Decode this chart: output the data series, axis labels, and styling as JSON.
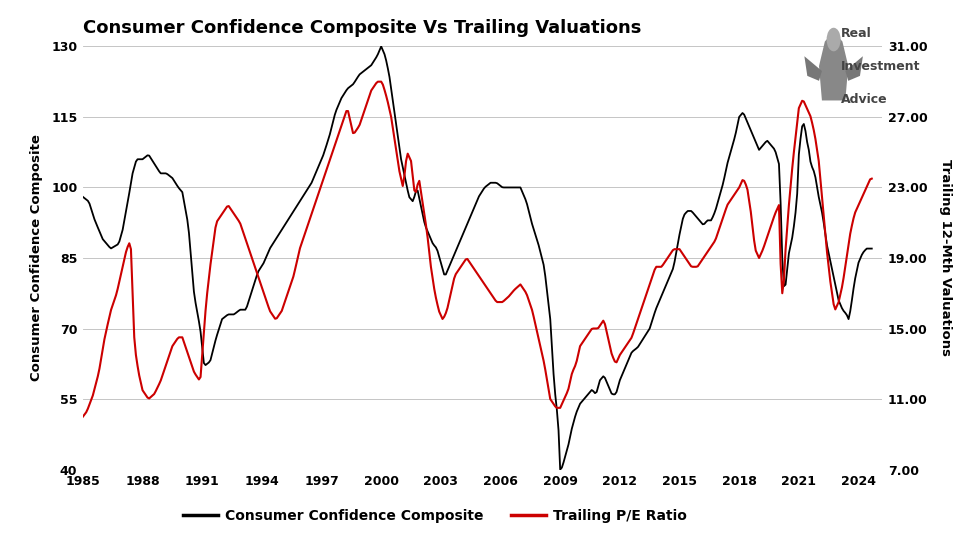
{
  "title": "Consumer Confidence Composite Vs Trailing Valuations",
  "ylabel_left": "Consumer Confidence Composite",
  "ylabel_right": "Trailing 12-Mth Valuations",
  "legend_black": "Consumer Confidence Composite",
  "legend_red": "Trailing P/E Ratio",
  "xlim": [
    1985,
    2025.2
  ],
  "ylim_left": [
    40,
    130
  ],
  "ylim_right": [
    7.0,
    31.0
  ],
  "yticks_left": [
    40,
    55,
    70,
    85,
    100,
    115,
    130
  ],
  "yticks_right": [
    7.0,
    11.0,
    15.0,
    19.0,
    23.0,
    27.0,
    31.0
  ],
  "xticks": [
    1985,
    1988,
    1991,
    1994,
    1997,
    2000,
    2003,
    2006,
    2009,
    2012,
    2015,
    2018,
    2021,
    2024
  ],
  "background_color": "#1a1a1a",
  "plot_bg_color": "#1a1a1a",
  "grid_color": "#444444",
  "line_black": "#000000",
  "line_red": "#cc0000",
  "text_color": "#000000",
  "tick_color": "#000000",
  "watermark_text1": "Real",
  "watermark_text2": "Investment",
  "watermark_text3": "Advice"
}
